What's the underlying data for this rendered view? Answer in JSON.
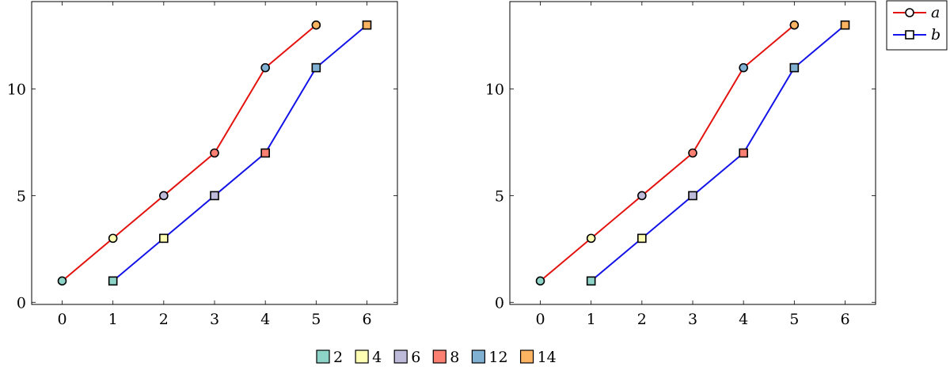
{
  "chart_data": [
    {
      "type": "line",
      "x_ticks": [
        0,
        1,
        2,
        3,
        4,
        5,
        6
      ],
      "y_ticks": [
        0,
        5,
        10
      ],
      "xlim": [
        -0.6,
        6.6
      ],
      "ylim": [
        -0.1,
        14.1
      ],
      "series": [
        {
          "x": [
            0,
            1,
            2,
            3,
            4,
            5
          ],
          "y": [
            1,
            3,
            5,
            7,
            11,
            13
          ],
          "color": "#e3130f",
          "marker": "circle",
          "point_meta": [
            2,
            4,
            6,
            8,
            12,
            14
          ]
        },
        {
          "x": [
            1,
            2,
            3,
            4,
            5,
            6
          ],
          "y": [
            1,
            3,
            5,
            7,
            11,
            13
          ],
          "color": "#1414e8",
          "marker": "square",
          "point_meta": [
            2,
            4,
            6,
            8,
            12,
            14
          ]
        }
      ]
    },
    {
      "type": "line",
      "x_ticks": [
        0,
        1,
        2,
        3,
        4,
        5,
        6
      ],
      "y_ticks": [
        0,
        5,
        10
      ],
      "xlim": [
        -0.6,
        6.6
      ],
      "ylim": [
        -0.1,
        14.1
      ],
      "series": [
        {
          "name": "a",
          "x": [
            0,
            1,
            2,
            3,
            4,
            5
          ],
          "y": [
            1,
            3,
            5,
            7,
            11,
            13
          ],
          "color": "#e3130f",
          "marker": "circle",
          "point_meta": [
            2,
            4,
            6,
            8,
            12,
            14
          ]
        },
        {
          "name": "b",
          "x": [
            1,
            2,
            3,
            4,
            5,
            6
          ],
          "y": [
            1,
            3,
            5,
            7,
            11,
            13
          ],
          "color": "#1414e8",
          "marker": "square",
          "point_meta": [
            2,
            4,
            6,
            8,
            12,
            14
          ]
        }
      ],
      "legend": "outside-top-right"
    }
  ],
  "color_legend": {
    "entries": [
      {
        "label": "2",
        "color": "#8dd3c7"
      },
      {
        "label": "4",
        "color": "#ffffb3"
      },
      {
        "label": "6",
        "color": "#bebada"
      },
      {
        "label": "8",
        "color": "#fb8072"
      },
      {
        "label": "12",
        "color": "#80b1d3"
      },
      {
        "label": "14",
        "color": "#fdb462"
      }
    ]
  }
}
